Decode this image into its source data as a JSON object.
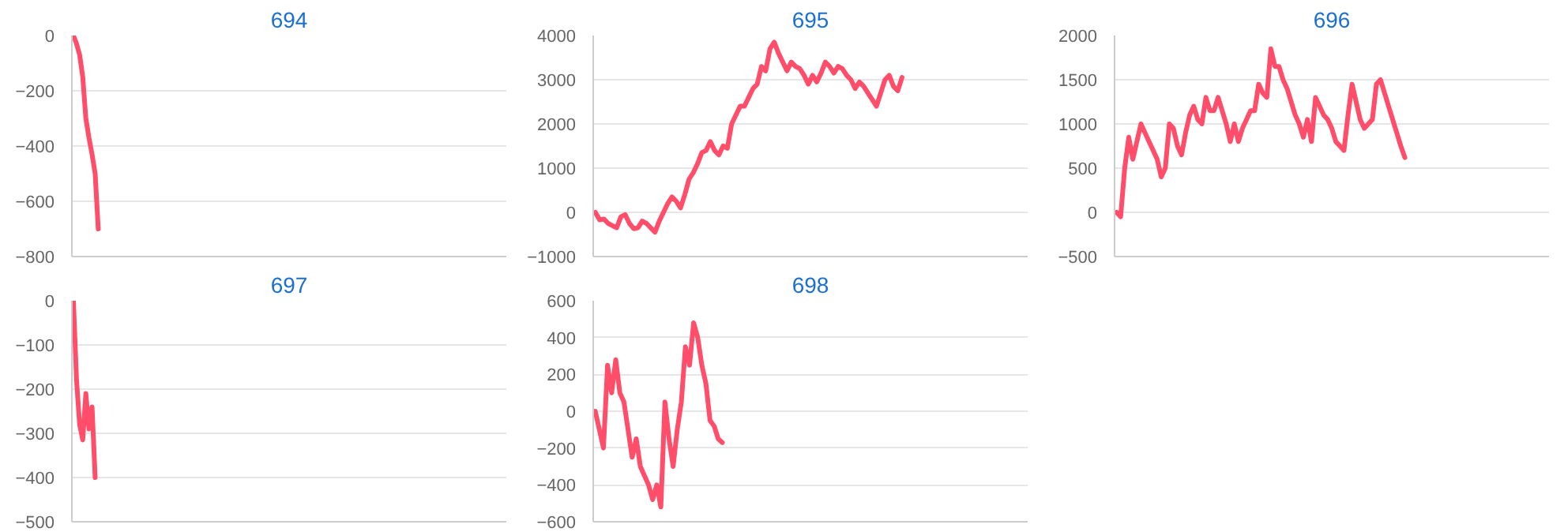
{
  "chart_data": [
    {
      "type": "line",
      "title": "694",
      "color": "#ff4d6a",
      "ylim": [
        -800,
        0
      ],
      "yticks": [
        -800,
        -600,
        -400,
        -200,
        0
      ],
      "grid": "y",
      "tick_labels": "y",
      "categories": [
        null,
        null,
        null,
        null,
        null,
        null,
        null,
        null,
        null,
        null,
        null,
        null,
        null,
        null,
        null,
        null,
        null,
        null,
        null,
        null,
        null,
        null,
        null,
        null,
        null,
        null,
        null,
        null,
        null,
        null,
        null,
        null,
        null,
        null,
        null,
        null,
        null,
        null,
        null,
        null,
        null,
        null,
        null,
        null,
        null,
        null,
        null,
        null,
        null,
        null,
        null,
        null,
        null,
        null,
        null,
        null,
        null,
        null,
        null,
        null,
        null,
        null,
        null,
        null,
        null,
        null,
        null,
        null,
        null,
        null,
        null,
        null,
        null,
        null,
        null,
        null,
        null,
        null,
        null,
        null,
        null,
        null,
        null,
        null,
        null,
        null,
        null,
        null,
        null,
        null,
        null,
        null,
        null,
        null,
        null,
        null,
        null,
        null,
        null,
        null,
        null,
        null,
        null,
        null,
        null,
        null,
        null,
        null,
        null,
        null,
        null,
        null,
        null,
        null,
        null,
        null,
        null,
        null,
        null,
        null,
        null,
        null,
        null,
        null,
        null,
        null,
        null,
        null,
        null,
        null,
        null,
        null,
        null,
        null,
        null,
        null,
        null,
        null,
        null,
        null
      ],
      "values": [
        0,
        -30,
        -70,
        -150,
        -300,
        -370,
        -430,
        -500,
        -700,
        null,
        null,
        null,
        null,
        null,
        null,
        null,
        null,
        null,
        null,
        null,
        null,
        null,
        null,
        null,
        null,
        null,
        null,
        null,
        null,
        null,
        null,
        null,
        null,
        null,
        null,
        null,
        null,
        null,
        null,
        null,
        null,
        null,
        null,
        null,
        null,
        null,
        null,
        null,
        null,
        null,
        null,
        null,
        null,
        null,
        null,
        null,
        null,
        null,
        null,
        null,
        null,
        null,
        null,
        null,
        null,
        null,
        null,
        null,
        null,
        null,
        null,
        null,
        null,
        null,
        null,
        null,
        null,
        null,
        null,
        null,
        null,
        null,
        null,
        null,
        null,
        null,
        null,
        null,
        null,
        null,
        null,
        null,
        null,
        null,
        null,
        null,
        null,
        null,
        null,
        null,
        null,
        null,
        null,
        null,
        null,
        null,
        null,
        null,
        null,
        null,
        null,
        null,
        null,
        null,
        null,
        null,
        null,
        null,
        null,
        null,
        null,
        null,
        null,
        null,
        null,
        null,
        null,
        null,
        null,
        null,
        null,
        null,
        null,
        null,
        null,
        null,
        null,
        null,
        null,
        null
      ]
    },
    {
      "type": "line",
      "title": "695",
      "color": "#ff4d6a",
      "ylim": [
        -1000,
        4000
      ],
      "yticks": [
        -1000,
        0,
        1000,
        2000,
        3000,
        4000
      ],
      "grid": "y",
      "tick_labels": "y",
      "categories": [
        null,
        null,
        null,
        null,
        null,
        null,
        null,
        null,
        null,
        null,
        null,
        null,
        null,
        null,
        null,
        null,
        null,
        null,
        null,
        null,
        null,
        null,
        null,
        null,
        null,
        null,
        null,
        null,
        null,
        null,
        null,
        null,
        null,
        null,
        null,
        null,
        null,
        null,
        null,
        null,
        null,
        null,
        null,
        null,
        null,
        null,
        null,
        null,
        null,
        null,
        null,
        null,
        null,
        null,
        null,
        null,
        null,
        null,
        null,
        null,
        null,
        null,
        null,
        null,
        null,
        null,
        null,
        null,
        null,
        null,
        null,
        null,
        null,
        null,
        null,
        null,
        null,
        null,
        null,
        null,
        null,
        null,
        null,
        null,
        null,
        null,
        null,
        null,
        null,
        null,
        null,
        null,
        null,
        null,
        null,
        null,
        null,
        null,
        null,
        null,
        null,
        null
      ],
      "values": [
        0,
        -170,
        -150,
        -250,
        -300,
        -350,
        -100,
        -50,
        -250,
        -370,
        -350,
        -200,
        -250,
        -350,
        -450,
        -200,
        0,
        200,
        350,
        250,
        100,
        400,
        750,
        900,
        1100,
        1350,
        1400,
        1600,
        1400,
        1300,
        1500,
        1450,
        2000,
        2200,
        2400,
        2400,
        2600,
        2800,
        2900,
        3300,
        3200,
        3700,
        3850,
        3600,
        3400,
        3200,
        3400,
        3300,
        3250,
        3100,
        2900,
        3100,
        2950,
        3150,
        3400,
        3300,
        3150,
        3300,
        3250,
        3100,
        3000,
        2800,
        2950,
        2850,
        2700,
        2550,
        2400,
        2700,
        3000,
        3100,
        2850,
        2750,
        3050,
        null,
        null,
        null,
        null,
        null,
        null,
        null,
        null,
        null,
        null,
        null,
        null,
        null,
        null,
        null,
        null,
        null,
        null,
        null,
        null,
        null,
        null,
        null,
        null,
        null,
        null,
        null,
        null,
        null
      ]
    },
    {
      "type": "line",
      "title": "696",
      "color": "#ff4d6a",
      "ylim": [
        -500,
        2000
      ],
      "yticks": [
        -500,
        0,
        500,
        1000,
        1500,
        2000
      ],
      "grid": "y",
      "tick_labels": "y",
      "categories": [
        null,
        null,
        null,
        null,
        null,
        null,
        null,
        null,
        null,
        null,
        null,
        null,
        null,
        null,
        null,
        null,
        null,
        null,
        null,
        null,
        null,
        null,
        null,
        null,
        null,
        null,
        null,
        null,
        null,
        null,
        null,
        null,
        null,
        null,
        null,
        null,
        null,
        null,
        null,
        null,
        null,
        null,
        null,
        null,
        null,
        null,
        null,
        null,
        null,
        null,
        null,
        null,
        null,
        null,
        null,
        null,
        null,
        null,
        null,
        null,
        null,
        null,
        null,
        null,
        null,
        null,
        null,
        null,
        null,
        null,
        null,
        null,
        null,
        null,
        null,
        null,
        null,
        null,
        null,
        null,
        null,
        null,
        null,
        null,
        null,
        null,
        null,
        null,
        null,
        null,
        null,
        null,
        null,
        null,
        null,
        null,
        null,
        null,
        null,
        null,
        null,
        null,
        null,
        null,
        null,
        null,
        null
      ],
      "values": [
        0,
        -50,
        500,
        850,
        600,
        800,
        1000,
        900,
        800,
        700,
        600,
        400,
        500,
        1000,
        950,
        750,
        650,
        900,
        1100,
        1200,
        1050,
        1000,
        1300,
        1150,
        1150,
        1300,
        1150,
        1000,
        800,
        1000,
        800,
        950,
        1050,
        1150,
        1150,
        1450,
        1350,
        1300,
        1850,
        1650,
        1650,
        1500,
        1400,
        1250,
        1100,
        1000,
        850,
        1050,
        800,
        1300,
        1200,
        1100,
        1050,
        950,
        800,
        750,
        700,
        1100,
        1450,
        1250,
        1050,
        950,
        1000,
        1050,
        1450,
        1500,
        1350,
        1200,
        1050,
        900,
        750,
        620,
        null,
        null,
        null,
        null,
        null,
        null,
        null,
        null,
        null,
        null,
        null,
        null,
        null,
        null,
        null,
        null,
        null,
        null,
        null,
        null,
        null,
        null,
        null,
        null,
        null,
        null,
        null,
        null,
        null,
        null,
        null,
        null,
        null,
        null,
        null
      ]
    },
    {
      "type": "line",
      "title": "697",
      "color": "#ff4d6a",
      "ylim": [
        -500,
        0
      ],
      "yticks": [
        -500,
        -400,
        -300,
        -200,
        -100,
        0
      ],
      "grid": "y",
      "tick_labels": "y",
      "categories": [
        null,
        null,
        null,
        null,
        null,
        null,
        null,
        null,
        null,
        null,
        null,
        null,
        null,
        null,
        null,
        null,
        null,
        null,
        null,
        null,
        null,
        null,
        null,
        null,
        null,
        null,
        null,
        null,
        null,
        null,
        null,
        null,
        null,
        null,
        null,
        null,
        null,
        null,
        null,
        null,
        null,
        null,
        null,
        null,
        null,
        null,
        null,
        null,
        null,
        null,
        null,
        null,
        null,
        null,
        null,
        null,
        null,
        null,
        null,
        null,
        null,
        null,
        null,
        null,
        null,
        null,
        null,
        null,
        null,
        null,
        null,
        null,
        null,
        null,
        null,
        null,
        null,
        null,
        null,
        null,
        null,
        null,
        null,
        null,
        null,
        null,
        null,
        null,
        null,
        null,
        null,
        null,
        null,
        null,
        null,
        null,
        null,
        null,
        null,
        null,
        null,
        null,
        null,
        null,
        null,
        null,
        null,
        null,
        null,
        null,
        null,
        null,
        null,
        null,
        null,
        null,
        null,
        null,
        null,
        null,
        null,
        null,
        null,
        null,
        null,
        null,
        null,
        null,
        null,
        null,
        null,
        null,
        null,
        null,
        null,
        null,
        null,
        null,
        null,
        null
      ],
      "values": [
        0,
        -180,
        -280,
        -315,
        -210,
        -290,
        -240,
        -400,
        null,
        null,
        null,
        null,
        null,
        null,
        null,
        null,
        null,
        null,
        null,
        null,
        null,
        null,
        null,
        null,
        null,
        null,
        null,
        null,
        null,
        null,
        null,
        null,
        null,
        null,
        null,
        null,
        null,
        null,
        null,
        null,
        null,
        null,
        null,
        null,
        null,
        null,
        null,
        null,
        null,
        null,
        null,
        null,
        null,
        null,
        null,
        null,
        null,
        null,
        null,
        null,
        null,
        null,
        null,
        null,
        null,
        null,
        null,
        null,
        null,
        null,
        null,
        null,
        null,
        null,
        null,
        null,
        null,
        null,
        null,
        null,
        null,
        null,
        null,
        null,
        null,
        null,
        null,
        null,
        null,
        null,
        null,
        null,
        null,
        null,
        null,
        null,
        null,
        null,
        null,
        null,
        null,
        null,
        null,
        null,
        null,
        null,
        null,
        null,
        null,
        null,
        null,
        null,
        null,
        null,
        null,
        null,
        null,
        null,
        null,
        null,
        null,
        null,
        null,
        null,
        null,
        null,
        null,
        null,
        null,
        null,
        null,
        null,
        null,
        null,
        null,
        null,
        null,
        null,
        null,
        null
      ]
    },
    {
      "type": "line",
      "title": "698",
      "color": "#ff4d6a",
      "ylim": [
        -600,
        600
      ],
      "yticks": [
        -600,
        -400,
        -200,
        0,
        200,
        400,
        600
      ],
      "grid": "y",
      "tick_labels": "y",
      "categories": [
        null,
        null,
        null,
        null,
        null,
        null,
        null,
        null,
        null,
        null,
        null,
        null,
        null,
        null,
        null,
        null,
        null,
        null,
        null,
        null,
        null,
        null,
        null,
        null,
        null,
        null,
        null,
        null,
        null,
        null,
        null,
        null,
        null,
        null,
        null,
        null,
        null,
        null,
        null,
        null,
        null,
        null,
        null,
        null,
        null,
        null,
        null,
        null,
        null,
        null,
        null,
        null,
        null,
        null,
        null,
        null,
        null,
        null,
        null,
        null,
        null,
        null,
        null,
        null,
        null,
        null,
        null,
        null,
        null,
        null,
        null,
        null,
        null,
        null,
        null,
        null,
        null,
        null,
        null,
        null,
        null,
        null,
        null,
        null,
        null,
        null,
        null,
        null,
        null,
        null,
        null,
        null,
        null,
        null,
        null,
        null,
        null,
        null,
        null,
        null,
        null,
        null,
        null,
        null,
        null,
        null
      ],
      "values": [
        0,
        -100,
        -200,
        250,
        100,
        280,
        100,
        50,
        -100,
        -250,
        -150,
        -300,
        -350,
        -400,
        -480,
        -400,
        -520,
        50,
        -150,
        -300,
        -100,
        50,
        350,
        250,
        480,
        400,
        250,
        150,
        -50,
        -80,
        -150,
        -170,
        null,
        null,
        null,
        null,
        null,
        null,
        null,
        null,
        null,
        null,
        null,
        null,
        null,
        null,
        null,
        null,
        null,
        null,
        null,
        null,
        null,
        null,
        null,
        null,
        null,
        null,
        null,
        null,
        null,
        null,
        null,
        null,
        null,
        null,
        null,
        null,
        null,
        null,
        null,
        null,
        null,
        null,
        null,
        null,
        null,
        null,
        null,
        null,
        null,
        null,
        null,
        null,
        null,
        null,
        null,
        null,
        null,
        null,
        null,
        null,
        null,
        null,
        null,
        null,
        null,
        null,
        null,
        null,
        null,
        null,
        null,
        null,
        null,
        null
      ]
    }
  ]
}
